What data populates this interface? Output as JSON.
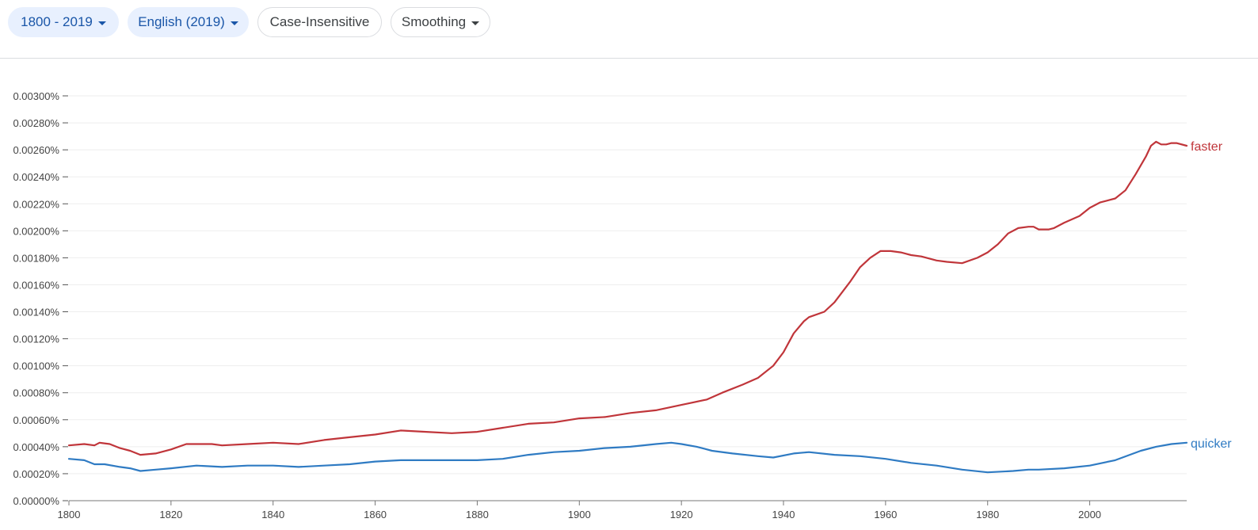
{
  "toolbar": {
    "year_range": "1800 - 2019",
    "corpus": "English (2019)",
    "case_toggle": "Case-Insensitive",
    "smoothing": "Smoothing"
  },
  "colors": {
    "accent": "#1a56a8",
    "faster": "#c0353a",
    "quicker": "#2f7bc3"
  },
  "chart_data": {
    "type": "line",
    "title": "",
    "xlabel": "",
    "ylabel": "",
    "xlim": [
      1800,
      2019
    ],
    "ylim": [
      0,
      0.003
    ],
    "y_ticks": [
      0,
      0.0002,
      0.0004,
      0.0006,
      0.0008,
      0.001,
      0.0012,
      0.0014,
      0.0016,
      0.0018,
      0.002,
      0.0022,
      0.0024,
      0.0026,
      0.0028,
      0.003
    ],
    "y_tick_labels": [
      "0.00000%",
      "0.00020%",
      "0.00040%",
      "0.00060%",
      "0.00080%",
      "0.00100%",
      "0.00120%",
      "0.00140%",
      "0.00160%",
      "0.00180%",
      "0.00200%",
      "0.00220%",
      "0.00240%",
      "0.00260%",
      "0.00280%",
      "0.00300%"
    ],
    "x_ticks": [
      1800,
      1820,
      1840,
      1860,
      1880,
      1900,
      1920,
      1940,
      1960,
      1980,
      2000
    ],
    "x_tick_labels": [
      "1800",
      "1820",
      "1840",
      "1860",
      "1880",
      "1900",
      "1920",
      "1940",
      "1960",
      "1980",
      "2000"
    ],
    "grid": true,
    "legend": "labels at right end of lines",
    "series": [
      {
        "name": "faster",
        "x": [
          1800,
          1803,
          1805,
          1806,
          1808,
          1810,
          1812,
          1814,
          1817,
          1820,
          1823,
          1825,
          1828,
          1830,
          1835,
          1840,
          1845,
          1850,
          1855,
          1860,
          1865,
          1870,
          1875,
          1880,
          1885,
          1890,
          1895,
          1900,
          1905,
          1910,
          1915,
          1920,
          1925,
          1928,
          1932,
          1935,
          1938,
          1940,
          1942,
          1944,
          1945,
          1948,
          1950,
          1953,
          1955,
          1957,
          1959,
          1961,
          1963,
          1965,
          1967,
          1970,
          1972,
          1975,
          1978,
          1980,
          1982,
          1984,
          1986,
          1988,
          1989,
          1990,
          1992,
          1993,
          1995,
          1998,
          2000,
          2002,
          2004,
          2005,
          2007,
          2009,
          2011,
          2012,
          2013,
          2014,
          2015,
          2016,
          2017,
          2019
        ],
        "values": [
          0.00041,
          0.00042,
          0.00041,
          0.00043,
          0.00042,
          0.00039,
          0.00037,
          0.00034,
          0.00035,
          0.00038,
          0.00042,
          0.00042,
          0.00042,
          0.00041,
          0.00042,
          0.00043,
          0.00042,
          0.00045,
          0.00047,
          0.00049,
          0.00052,
          0.00051,
          0.0005,
          0.00051,
          0.00054,
          0.00057,
          0.00058,
          0.00061,
          0.00062,
          0.00065,
          0.00067,
          0.00071,
          0.00075,
          0.0008,
          0.00086,
          0.00091,
          0.001,
          0.0011,
          0.00124,
          0.00133,
          0.00136,
          0.0014,
          0.00147,
          0.00162,
          0.00173,
          0.0018,
          0.00185,
          0.00185,
          0.00184,
          0.00182,
          0.00181,
          0.00178,
          0.00177,
          0.00176,
          0.0018,
          0.00184,
          0.0019,
          0.00198,
          0.00202,
          0.00203,
          0.00203,
          0.00201,
          0.00201,
          0.00202,
          0.00206,
          0.00211,
          0.00217,
          0.00221,
          0.00223,
          0.00224,
          0.0023,
          0.00242,
          0.00255,
          0.00263,
          0.00266,
          0.00264,
          0.00264,
          0.00265,
          0.00265,
          0.00263
        ]
      },
      {
        "name": "quicker",
        "x": [
          1800,
          1803,
          1805,
          1807,
          1810,
          1812,
          1814,
          1817,
          1820,
          1825,
          1830,
          1835,
          1840,
          1845,
          1850,
          1855,
          1860,
          1865,
          1870,
          1875,
          1880,
          1885,
          1890,
          1895,
          1900,
          1905,
          1910,
          1915,
          1918,
          1920,
          1923,
          1926,
          1930,
          1935,
          1938,
          1942,
          1945,
          1950,
          1955,
          1960,
          1965,
          1970,
          1975,
          1980,
          1985,
          1988,
          1990,
          1995,
          2000,
          2005,
          2010,
          2013,
          2016,
          2019
        ],
        "values": [
          0.00031,
          0.0003,
          0.00027,
          0.00027,
          0.00025,
          0.00024,
          0.00022,
          0.00023,
          0.00024,
          0.00026,
          0.00025,
          0.00026,
          0.00026,
          0.00025,
          0.00026,
          0.00027,
          0.00029,
          0.0003,
          0.0003,
          0.0003,
          0.0003,
          0.00031,
          0.00034,
          0.00036,
          0.00037,
          0.00039,
          0.0004,
          0.00042,
          0.00043,
          0.00042,
          0.0004,
          0.00037,
          0.00035,
          0.00033,
          0.00032,
          0.00035,
          0.00036,
          0.00034,
          0.00033,
          0.00031,
          0.00028,
          0.00026,
          0.00023,
          0.00021,
          0.00022,
          0.00023,
          0.00023,
          0.00024,
          0.00026,
          0.0003,
          0.00037,
          0.0004,
          0.00042,
          0.00043
        ]
      }
    ]
  }
}
